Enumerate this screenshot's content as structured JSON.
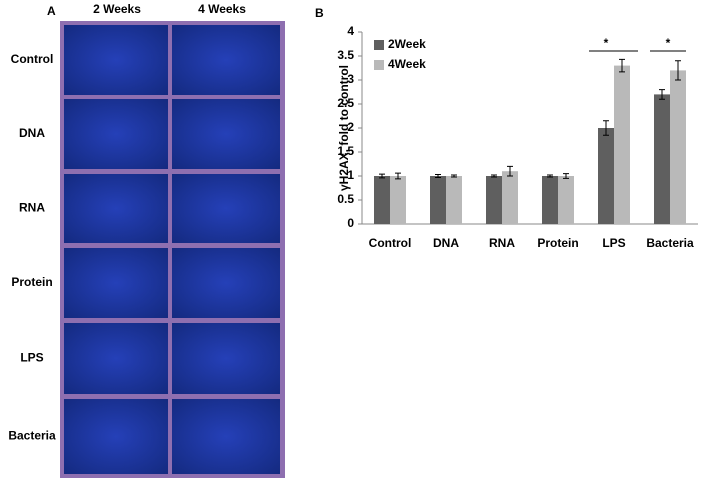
{
  "panel_a": {
    "label": "A",
    "columns": [
      "2  Weeks",
      "4 Weeks"
    ],
    "rows": [
      "Control",
      "DNA",
      "RNA",
      "Protein",
      "LPS",
      "Bacteria"
    ]
  },
  "chart_data": {
    "type": "bar",
    "panel_label": "B",
    "y_label": "γH2AX, fold to control",
    "categories": [
      "Control",
      "DNA",
      "RNA",
      "Protein",
      "LPS",
      "Bacteria"
    ],
    "series": [
      {
        "name": "2Week",
        "color": "#5f5f5f",
        "values": [
          1.0,
          1.0,
          1.0,
          1.0,
          2.0,
          2.7
        ],
        "errors": [
          0.04,
          0.03,
          0.02,
          0.02,
          0.15,
          0.1
        ]
      },
      {
        "name": "4Week",
        "color": "#b9b9b9",
        "values": [
          1.0,
          1.0,
          1.1,
          1.0,
          3.3,
          3.2
        ],
        "errors": [
          0.06,
          0.02,
          0.1,
          0.05,
          0.13,
          0.2
        ]
      }
    ],
    "ylim": [
      0,
      4
    ],
    "yticks": [
      0,
      0.5,
      1,
      1.5,
      2,
      2.5,
      3,
      3.5,
      4
    ],
    "legend": "upper left",
    "annotations": [
      "*",
      "*"
    ]
  }
}
